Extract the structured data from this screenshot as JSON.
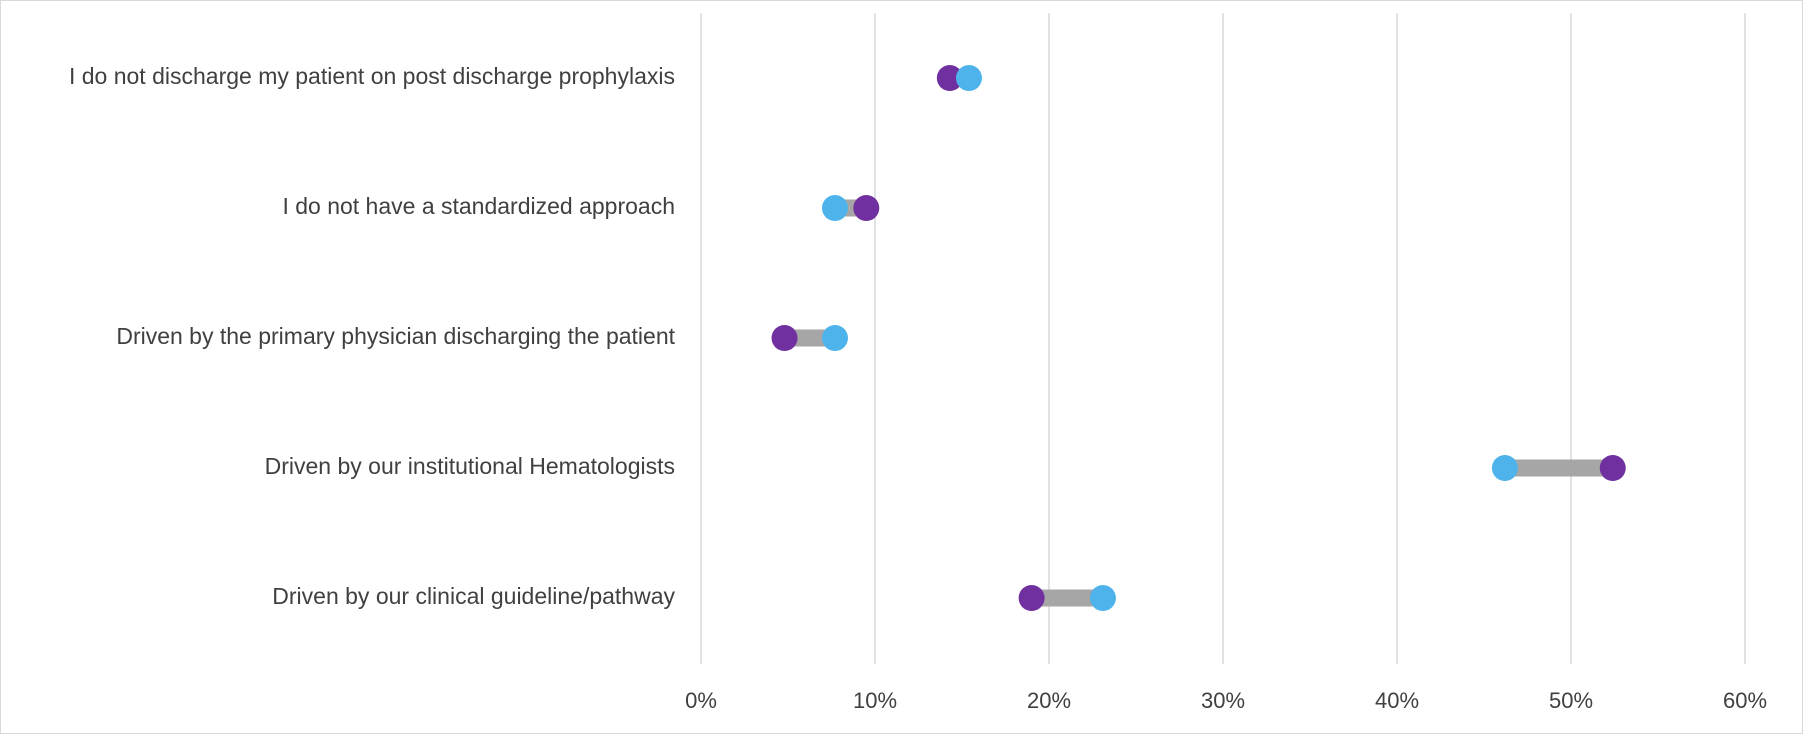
{
  "chart_data": {
    "type": "dumbbell",
    "title": "",
    "xlabel": "",
    "ylabel": "",
    "xlim": [
      0,
      60
    ],
    "x_ticks": [
      0,
      10,
      20,
      30,
      40,
      50,
      60
    ],
    "x_tick_labels": [
      "0%",
      "10%",
      "20%",
      "30%",
      "40%",
      "50%",
      "60%"
    ],
    "grid": "vertical",
    "legend": "none",
    "categories": [
      "I do not discharge my patient on post discharge prophylaxis",
      "I do not have a standardized approach",
      "Driven by the primary physician discharging the patient",
      "Driven by our institutional Hematologists",
      "Driven by our clinical guideline/pathway"
    ],
    "series": [
      {
        "color": "#7030a0",
        "values": [
          14.3,
          9.5,
          4.8,
          52.4,
          19.0
        ]
      },
      {
        "color": "#4db3ea",
        "values": [
          15.4,
          7.7,
          7.7,
          46.2,
          23.1
        ]
      }
    ],
    "connector_color": "#a6a6a6",
    "grid_color": "#d9d9d9",
    "text_color": "#404040"
  }
}
